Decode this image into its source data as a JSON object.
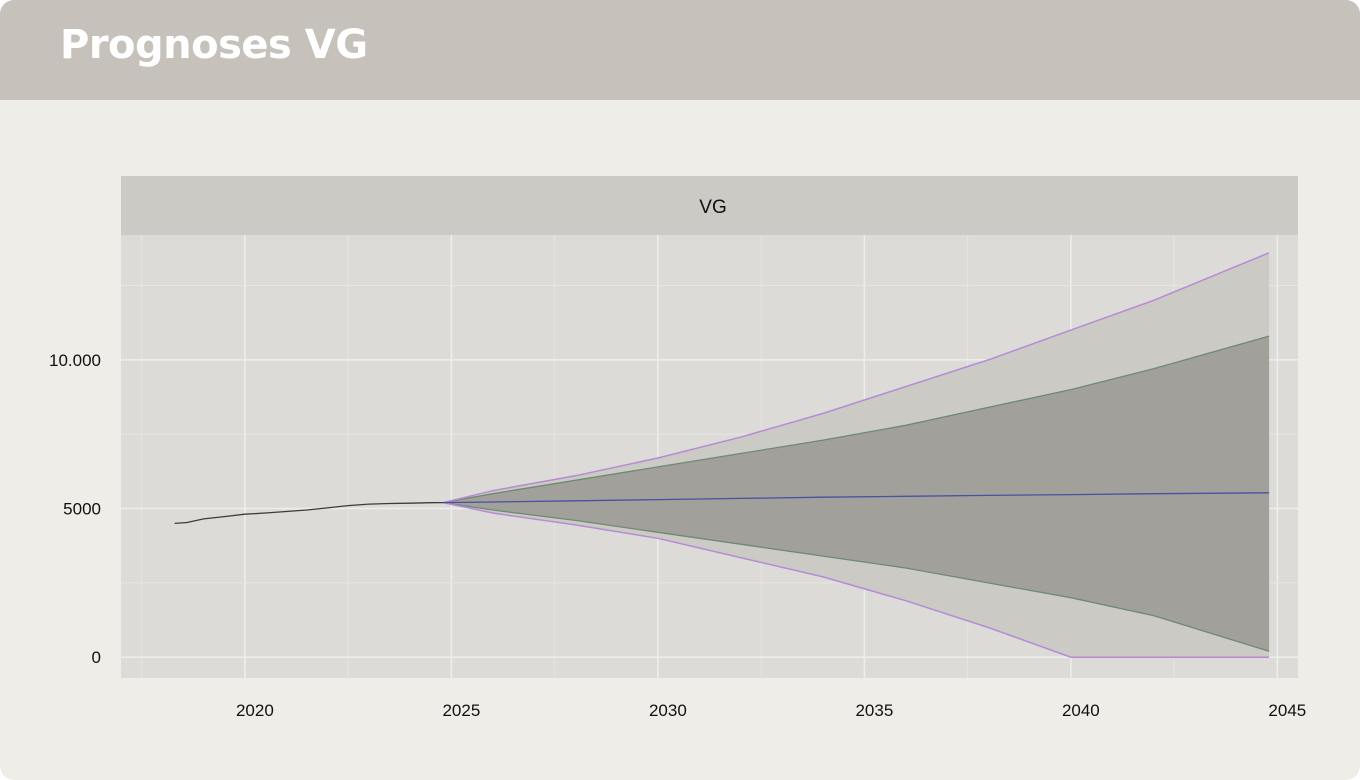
{
  "header": {
    "title": "Prognoses VG"
  },
  "chart_data": {
    "type": "line",
    "panel_title": "VG",
    "xlim": [
      2017,
      2045.5
    ],
    "ylim": [
      -700,
      14200
    ],
    "x_ticks": [
      2020,
      2025,
      2030,
      2035,
      2040,
      2045
    ],
    "x_tick_labels": [
      "2020",
      "2025",
      "2030",
      "2035",
      "2040",
      "2045"
    ],
    "y_ticks": [
      0,
      5000,
      10000
    ],
    "y_tick_labels": [
      "0",
      "5000",
      "10.000"
    ],
    "grid": true,
    "historical": {
      "x": [
        2018.3,
        2018.6,
        2019.0,
        2019.5,
        2020.0,
        2020.5,
        2021.0,
        2021.5,
        2022.0,
        2022.5,
        2023.0,
        2023.5,
        2024.0,
        2024.5,
        2024.8
      ],
      "y": [
        4500,
        4530,
        4650,
        4730,
        4810,
        4850,
        4900,
        4950,
        5020,
        5100,
        5150,
        5170,
        5180,
        5195,
        5200
      ]
    },
    "forecast": {
      "x": [
        2024.8,
        2026,
        2028,
        2030,
        2032,
        2034,
        2036,
        2038,
        2040,
        2042,
        2044.8
      ],
      "mean": [
        5200,
        5220,
        5260,
        5300,
        5340,
        5380,
        5410,
        5440,
        5470,
        5500,
        5530
      ],
      "upper_80": [
        5200,
        5500,
        5950,
        6400,
        6850,
        7300,
        7800,
        8400,
        9000,
        9700,
        10800
      ],
      "lower_80": [
        5200,
        4950,
        4600,
        4200,
        3800,
        3400,
        3000,
        2500,
        2000,
        1400,
        200
      ],
      "upper_95": [
        5200,
        5600,
        6100,
        6700,
        7400,
        8200,
        9100,
        10000,
        11000,
        12000,
        13600
      ],
      "lower_95": [
        5200,
        4850,
        4450,
        4000,
        3350,
        2700,
        1900,
        1000,
        0,
        0,
        0
      ]
    },
    "colors": {
      "historical": "#3c3c3c",
      "mean": "#4b50a0",
      "band_80": "#a1a09b",
      "band_95": "#cbcac5",
      "band_80_edge": "#6e8a70",
      "band_95_edge": "#b88ad6",
      "panel_bg": "#dcdbd7",
      "strip_bg": "#cbcac5",
      "grid_major": "#eeeeee",
      "grid_minor": "#e6e5e2"
    }
  }
}
